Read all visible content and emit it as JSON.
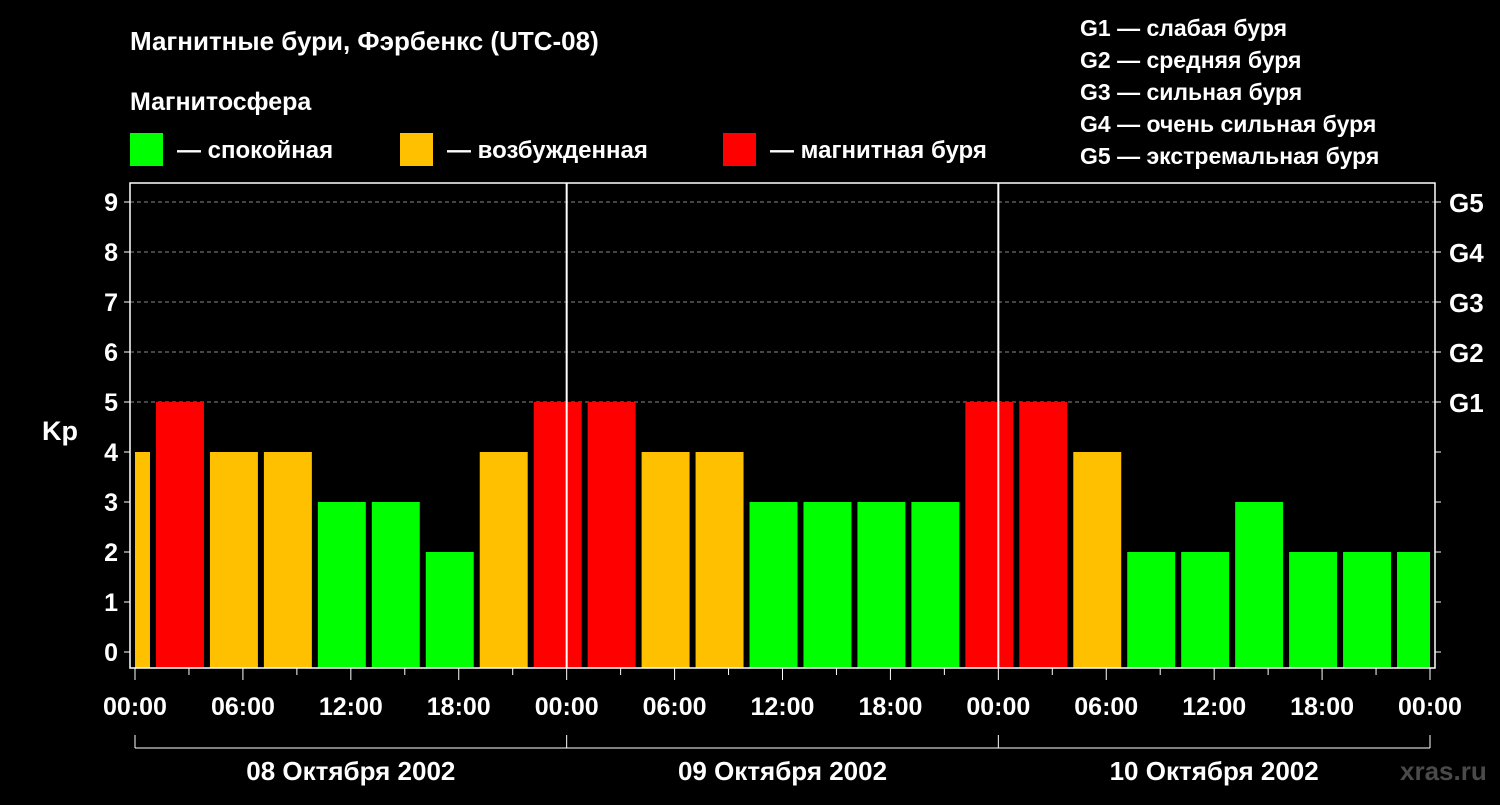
{
  "chart_data": {
    "type": "bar",
    "title": "Магнитные бури, Фэрбенкс (UTC-08)",
    "legend_title": "Магнитосфера",
    "legend": [
      {
        "label": "— спокойная",
        "color": "#00ff00"
      },
      {
        "label": "— возбужденная",
        "color": "#ffc000"
      },
      {
        "label": "— магнитная буря",
        "color": "#ff0000"
      }
    ],
    "g_legend": [
      "G1 — слабая буря",
      "G2 — средняя буря",
      "G3 — сильная буря",
      "G4 — очень сильная буря",
      "G5 — экстремальная буря"
    ],
    "ylabel": "Kp",
    "ylim": [
      0,
      9
    ],
    "yticks": [
      "0",
      "1",
      "2",
      "3",
      "4",
      "5",
      "6",
      "7",
      "8",
      "9"
    ],
    "g_ticks": [
      {
        "kp": 5,
        "label": "G1"
      },
      {
        "kp": 6,
        "label": "G2"
      },
      {
        "kp": 7,
        "label": "G3"
      },
      {
        "kp": 8,
        "label": "G4"
      },
      {
        "kp": 9,
        "label": "G5"
      }
    ],
    "x_range_hours": [
      0,
      72
    ],
    "xtick_labels": [
      "00:00",
      "06:00",
      "12:00",
      "18:00",
      "00:00",
      "06:00",
      "12:00",
      "18:00",
      "00:00",
      "06:00",
      "12:00",
      "18:00",
      "00:00"
    ],
    "days": [
      "08 Октября 2002",
      "09 Октября 2002",
      "10 Октября 2002"
    ],
    "bar_hours": 3,
    "bars": [
      {
        "start": -2,
        "kp": 4
      },
      {
        "start": 1,
        "kp": 5
      },
      {
        "start": 4,
        "kp": 4
      },
      {
        "start": 7,
        "kp": 4
      },
      {
        "start": 10,
        "kp": 3
      },
      {
        "start": 13,
        "kp": 3
      },
      {
        "start": 16,
        "kp": 2
      },
      {
        "start": 19,
        "kp": 4
      },
      {
        "start": 22,
        "kp": 5
      },
      {
        "start": 25,
        "kp": 5
      },
      {
        "start": 28,
        "kp": 4
      },
      {
        "start": 31,
        "kp": 4
      },
      {
        "start": 34,
        "kp": 3
      },
      {
        "start": 37,
        "kp": 3
      },
      {
        "start": 40,
        "kp": 3
      },
      {
        "start": 43,
        "kp": 3
      },
      {
        "start": 46,
        "kp": 5
      },
      {
        "start": 49,
        "kp": 5
      },
      {
        "start": 52,
        "kp": 4
      },
      {
        "start": 55,
        "kp": 2
      },
      {
        "start": 58,
        "kp": 2
      },
      {
        "start": 61,
        "kp": 3
      },
      {
        "start": 64,
        "kp": 2
      },
      {
        "start": 67,
        "kp": 2
      },
      {
        "start": 70,
        "kp": 2
      }
    ],
    "grid": "dashed horizontal at 5-9"
  },
  "watermark": "xras.ru"
}
